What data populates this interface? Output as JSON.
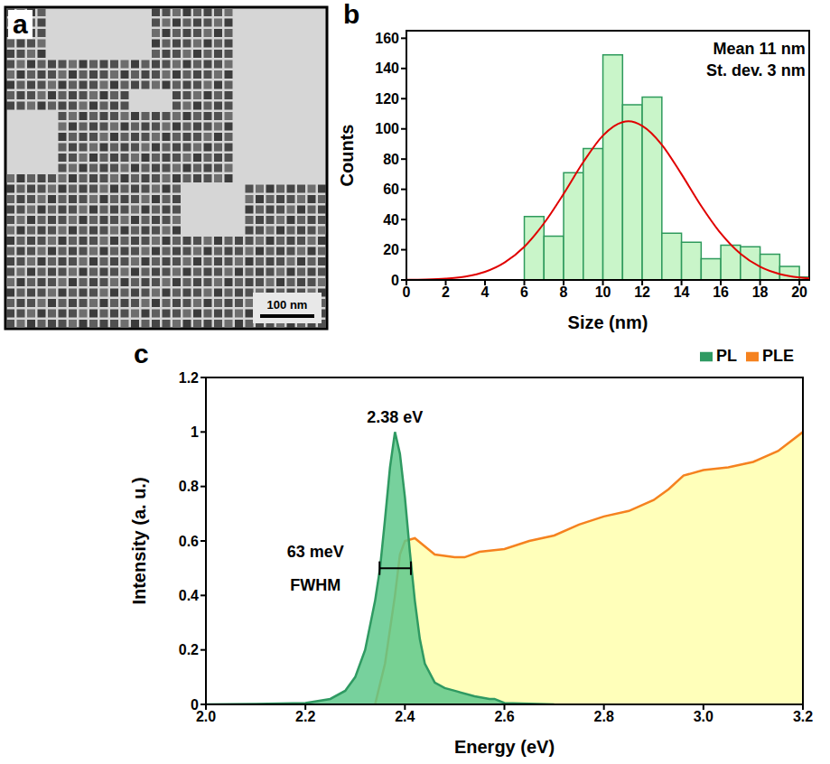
{
  "chart_data": [
    {
      "type": "image",
      "panel": "a",
      "annotations": [
        "100 nm"
      ]
    },
    {
      "type": "histogram",
      "panel": "b",
      "bins": [
        6,
        7,
        8,
        9,
        10,
        11,
        12,
        13,
        14,
        15,
        16,
        17,
        18,
        19,
        20,
        21
      ],
      "values": [
        42,
        29,
        71,
        87,
        149,
        116,
        121,
        31,
        25,
        14,
        23,
        22,
        17,
        9,
        2
      ],
      "color": "#2e9a5c",
      "fit": {
        "type": "line",
        "color": "#e00000",
        "x": [
          0,
          1,
          2,
          3,
          4,
          5,
          6,
          7,
          8,
          9,
          10,
          11,
          11.3,
          12,
          13,
          14,
          15,
          16,
          17,
          18,
          19,
          20,
          20.5
        ],
        "values": [
          0.1,
          0.3,
          0.9,
          2.3,
          5.4,
          11.6,
          22,
          37.5,
          57,
          78,
          95.6,
          104.5,
          105,
          102,
          89.5,
          70,
          49,
          30.8,
          17.3,
          8.7,
          3.9,
          1.6,
          1.0
        ]
      },
      "xlim": [
        0,
        20.5
      ],
      "ylim": [
        0,
        165
      ],
      "xticks": [
        0,
        2,
        4,
        6,
        8,
        10,
        12,
        14,
        16,
        18,
        20
      ],
      "yticks": [
        0,
        20,
        40,
        60,
        80,
        100,
        120,
        140,
        160
      ],
      "x_label": "Size (nm)",
      "y_label": "Counts",
      "annotations": [
        {
          "text": "Mean 11 nm",
          "x": 20.3,
          "y": 153
        },
        {
          "text": "St. dev. 3 nm",
          "x": 20.3,
          "y": 139
        }
      ]
    },
    {
      "type": "area",
      "panel": "c",
      "series": [
        {
          "name": "PL",
          "color": "#2f9a62",
          "x": [
            2.0,
            2.1,
            2.2,
            2.25,
            2.28,
            2.3,
            2.32,
            2.34,
            2.35,
            2.36,
            2.37,
            2.38,
            2.39,
            2.4,
            2.41,
            2.42,
            2.43,
            2.44,
            2.46,
            2.48,
            2.5,
            2.54,
            2.57,
            2.58,
            2.6,
            2.7
          ],
          "values": [
            0,
            0.002,
            0.005,
            0.02,
            0.05,
            0.1,
            0.2,
            0.38,
            0.5,
            0.68,
            0.87,
            1.0,
            0.92,
            0.76,
            0.56,
            0.38,
            0.24,
            0.15,
            0.08,
            0.06,
            0.05,
            0.03,
            0.02,
            0.02,
            0.005,
            0
          ]
        },
        {
          "name": "PLE",
          "color": "#f5821f",
          "x": [
            2.34,
            2.36,
            2.38,
            2.39,
            2.4,
            2.42,
            2.44,
            2.46,
            2.5,
            2.52,
            2.55,
            2.6,
            2.65,
            2.7,
            2.75,
            2.8,
            2.85,
            2.9,
            2.93,
            2.96,
            3.0,
            3.05,
            3.1,
            3.15,
            3.2
          ],
          "values": [
            0,
            0.15,
            0.4,
            0.55,
            0.6,
            0.61,
            0.58,
            0.55,
            0.54,
            0.54,
            0.56,
            0.57,
            0.6,
            0.62,
            0.66,
            0.69,
            0.71,
            0.75,
            0.79,
            0.84,
            0.86,
            0.87,
            0.89,
            0.93,
            1.0
          ]
        }
      ],
      "xlim": [
        2.0,
        3.2
      ],
      "ylim": [
        0,
        1.2
      ],
      "xticks": [
        {
          "value": 2,
          "label": "2.0"
        },
        2.2,
        2.4,
        2.6,
        2.8,
        {
          "value": 3,
          "label": "3.0"
        },
        3.2
      ],
      "yticks": [
        0,
        0.2,
        0.4,
        0.6,
        0.8,
        1,
        1.2
      ],
      "x_label": "Energy (eV)",
      "y_label": "Intensity (a. u.)",
      "legend": "top right",
      "annotations": [
        {
          "text": "2.38 eV",
          "x": 2.38,
          "y": 1.0
        },
        {
          "text": "63 meV",
          "x": 2.22,
          "y": 0.56
        },
        {
          "text": "FWHM",
          "x": 2.22,
          "y": 0.44
        }
      ],
      "fwhm": {
        "from": 2.349,
        "to": 2.412,
        "y": 0.5
      }
    }
  ]
}
